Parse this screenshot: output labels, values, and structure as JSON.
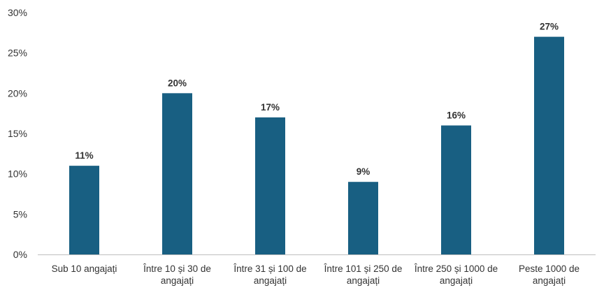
{
  "chart_data": {
    "type": "bar",
    "categories": [
      [
        "Sub 10 angajați"
      ],
      [
        "Între 10 și 30 de",
        "angajați"
      ],
      [
        "Între 31 și 100 de",
        "angajați"
      ],
      [
        "Între 101 și 250 de",
        "angajați"
      ],
      [
        "Între 250 și 1000 de",
        "angajați"
      ],
      [
        "Peste 1000 de",
        "angajați"
      ]
    ],
    "values": [
      11,
      20,
      17,
      9,
      16,
      27
    ],
    "data_labels": [
      "11%",
      "20%",
      "17%",
      "9%",
      "16%",
      "27%"
    ],
    "y_ticks": [
      0,
      5,
      10,
      15,
      20,
      25,
      30
    ],
    "y_tick_labels": [
      "0%",
      "5%",
      "10%",
      "15%",
      "20%",
      "25%",
      "30%"
    ],
    "ylim": [
      0,
      30
    ],
    "title": "",
    "xlabel": "",
    "ylabel": "",
    "grid": false,
    "legend": "none",
    "bar_color": "#185F82",
    "axis_color": "#BFBFBF"
  }
}
